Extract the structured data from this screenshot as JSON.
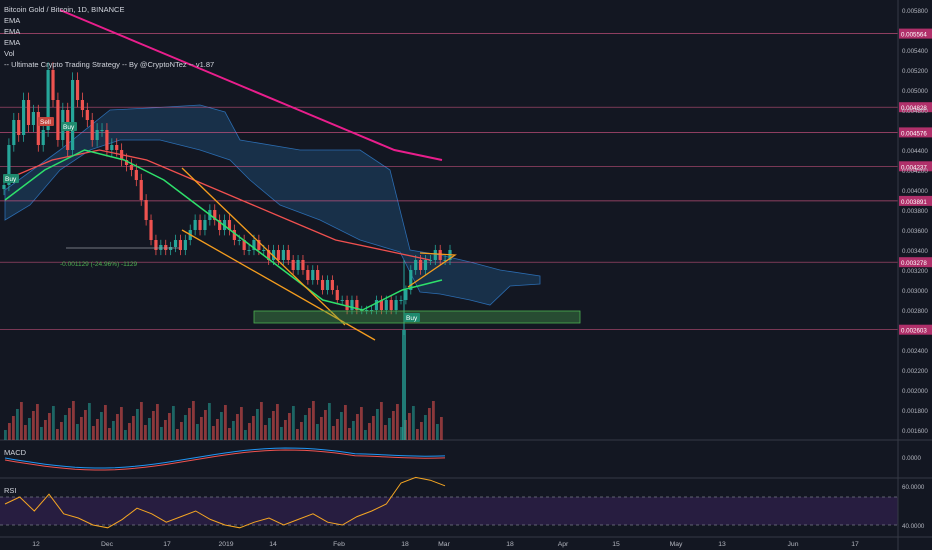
{
  "legend": {
    "title": "Bitcoin Gold / Bitcoin, 1D, BINANCE",
    "lines": [
      "EMA",
      "EMA",
      "EMA",
      "Vol",
      "-- Ultimate Crypto Trading Strategy -- By @CryptoNTez -- v1.87"
    ]
  },
  "colors": {
    "background": "#131722",
    "up": "#26a69a",
    "down": "#ef5350",
    "ema_long": "#e91e8c",
    "ema_mid": "#f0504f",
    "ema_short": "#2ee06b",
    "cloud": "#1e4f7a",
    "hline": "#e05a8a",
    "channel": "#f59d1e",
    "zone": "#4caf50",
    "rsi": "#f5a623",
    "rsi_bg": "#2a1e44",
    "macd": "#2196f3",
    "signal": "#ef5350"
  },
  "chart_data": {
    "type": "candlestick",
    "title": "Bitcoin Gold / Bitcoin, 1D, BINANCE",
    "x_ticks": [
      "12",
      "Dec",
      "17",
      "2019",
      "14",
      "Feb",
      "18",
      "Mar",
      "18",
      "Apr",
      "15",
      "May",
      "13",
      "Jun",
      "17"
    ],
    "y_ticks": [
      "0.005800",
      "0.005400",
      "0.005200",
      "0.005000",
      "0.004800",
      "0.004400",
      "0.004200",
      "0.004000",
      "0.003800",
      "0.003600",
      "0.003400",
      "0.003200",
      "0.003000",
      "0.002800",
      "0.002400",
      "0.002200",
      "0.002000",
      "0.001800",
      "0.001600"
    ],
    "y_range": [
      0.0015,
      0.0059
    ],
    "horizontal_levels": [
      "0.005564",
      "0.004828",
      "0.004576",
      "0.004237",
      "0.003891",
      "0.003278",
      "0.002603"
    ],
    "candles_close": [
      0.00405,
      0.00445,
      0.0047,
      0.00455,
      0.0049,
      0.00465,
      0.00478,
      0.00445,
      0.0046,
      0.0052,
      0.0049,
      0.0045,
      0.0048,
      0.0044,
      0.0051,
      0.0049,
      0.0048,
      0.0047,
      0.0045,
      0.0046,
      0.0046,
      0.0044,
      0.00445,
      0.0044,
      0.0043,
      0.00425,
      0.0042,
      0.0041,
      0.0039,
      0.0037,
      0.0035,
      0.0034,
      0.00345,
      0.0034,
      0.00343,
      0.0035,
      0.0034,
      0.0035,
      0.0036,
      0.0037,
      0.0036,
      0.0037,
      0.0038,
      0.0037,
      0.0036,
      0.0037,
      0.0036,
      0.0035,
      0.0035,
      0.0034,
      0.0034,
      0.0035,
      0.0034,
      0.0034,
      0.0033,
      0.0034,
      0.0033,
      0.0034,
      0.0033,
      0.0032,
      0.0033,
      0.0032,
      0.0031,
      0.0032,
      0.0031,
      0.003,
      0.0031,
      0.003,
      0.0029,
      0.0029,
      0.0028,
      0.0029,
      0.0028,
      0.0028,
      0.0028,
      0.0028,
      0.0029,
      0.0028,
      0.0029,
      0.0028,
      0.0029,
      0.0029,
      0.003,
      0.0032,
      0.0033,
      0.0032,
      0.0033,
      0.0033,
      0.0034,
      0.0033,
      0.0033,
      0.0034
    ],
    "ema_long": [
      0.0058,
      0.0056,
      0.0054,
      0.0052,
      0.005,
      0.0048,
      0.0046,
      0.0044,
      0.0043
    ],
    "ema_mid": [
      0.0041,
      0.0043,
      0.0044,
      0.0043,
      0.0041,
      0.0039,
      0.0037,
      0.0035,
      0.0034,
      0.0033
    ],
    "ema_short": [
      0.0039,
      0.0042,
      0.0044,
      0.0043,
      0.0041,
      0.0038,
      0.0035,
      0.0032,
      0.0029,
      0.0028,
      0.003,
      0.0031
    ],
    "annotations": [
      "Sell",
      "Buy",
      "Buy",
      "Buy",
      "-0.001129 (-24.96%) -1129"
    ],
    "macd_ticks": [
      "0.0000"
    ],
    "rsi_ticks": [
      "60.0000",
      "40.0000"
    ],
    "macd_label": "MACD",
    "rsi_label": "RSI",
    "rsi_values": [
      55,
      60,
      50,
      62,
      48,
      45,
      40,
      38,
      44,
      52,
      48,
      42,
      46,
      50,
      44,
      40,
      38,
      42,
      45,
      40,
      44,
      48,
      42,
      40,
      46,
      50,
      55,
      70,
      74,
      72,
      68
    ]
  }
}
